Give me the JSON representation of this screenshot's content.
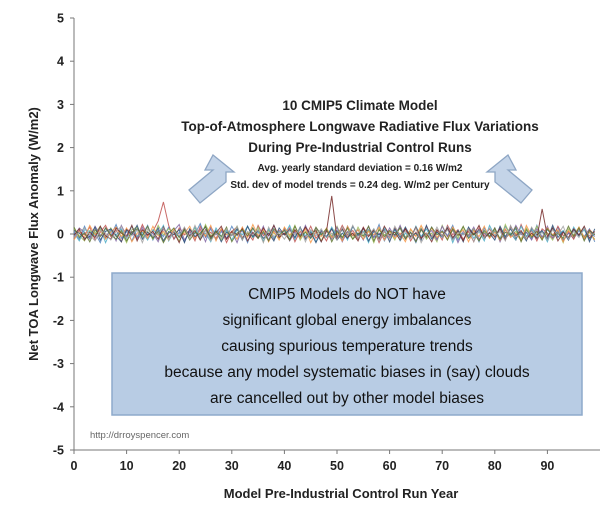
{
  "chart_data": {
    "type": "line",
    "title_lines": [
      "10 CMIP5 Climate Model",
      "Top-of-Atmosphere Longwave Radiative Flux Variations",
      "During Pre-Industrial Control Runs"
    ],
    "subtitle_lines": [
      "Avg. yearly standard deviation = 0.16 W/m2",
      "Std. dev of model trends = 0.24 deg. W/m2 per Century"
    ],
    "xlabel": "Model Pre-Industrial Control Run Year",
    "ylabel": "Net TOA Longwave Flux Anomaly (W/m2)",
    "xlim": [
      0,
      100
    ],
    "ylim": [
      -5,
      5
    ],
    "x_ticks": [
      0,
      10,
      20,
      30,
      40,
      50,
      60,
      70,
      80,
      90
    ],
    "y_ticks": [
      -5,
      -4,
      -3,
      -2,
      -1,
      0,
      1,
      2,
      3,
      4,
      5
    ],
    "grid": false,
    "legend": "none",
    "series_count": 10,
    "series_colors": [
      "#4f81bd",
      "#c0504d",
      "#9bbb59",
      "#8064a2",
      "#4bacc6",
      "#f79646",
      "#2c4d75",
      "#772c2a",
      "#5f7530",
      "#a3a3a3"
    ],
    "series_noise": [
      [
        0.05,
        -0.12,
        0.18,
        -0.08,
        0.02,
        -0.2,
        0.14,
        -0.04,
        0.22,
        -0.1,
        0.06,
        -0.16,
        0.12,
        -0.02,
        0.2,
        -0.14,
        0.08,
        -0.06,
        0.16,
        -0.12,
        0.04,
        -0.18,
        0.1,
        0.0,
        0.24,
        -0.08,
        0.12,
        -0.14,
        0.06,
        -0.1,
        0.18,
        -0.04,
        0.08,
        -0.2,
        0.14,
        -0.06,
        0.02,
        -0.16,
        0.2,
        -0.08,
        0.1,
        -0.12,
        0.06,
        -0.02,
        0.16,
        -0.1,
        0.04,
        -0.18,
        0.12,
        -0.06,
        0.08,
        -0.14,
        0.18,
        -0.04,
        0.02,
        -0.12,
        0.1,
        -0.08,
        0.22,
        -0.16,
        0.06,
        -0.02,
        0.14,
        -0.1,
        0.04,
        -0.2,
        0.12,
        -0.06,
        0.16,
        -0.12,
        0.08,
        -0.04,
        0.2,
        -0.14,
        0.02,
        -0.08,
        0.1,
        -0.18,
        0.14,
        -0.06,
        0.06,
        -0.1,
        0.18,
        -0.02,
        0.12,
        -0.16,
        0.04,
        -0.12,
        0.2,
        -0.08,
        0.1,
        -0.04,
        0.16,
        -0.14,
        0.02,
        -0.1,
        0.08,
        -0.06,
        0.12,
        -0.18
      ],
      [
        -0.1,
        0.08,
        -0.02,
        0.16,
        -0.14,
        0.04,
        0.2,
        -0.06,
        0.1,
        -0.18,
        0.12,
        0.02,
        -0.08,
        0.22,
        -0.04,
        0.06,
        0.3,
        0.74,
        0.2,
        -0.12,
        0.14,
        -0.02,
        0.08,
        -0.16,
        0.18,
        -0.06,
        0.04,
        -0.1,
        0.12,
        -0.2,
        0.06,
        0.16,
        -0.08,
        0.02,
        -0.14,
        0.2,
        -0.04,
        0.1,
        -0.12,
        0.08,
        -0.02,
        0.14,
        -0.18,
        0.06,
        -0.08,
        0.18,
        -0.1,
        0.04,
        -0.16,
        0.12,
        -0.06,
        0.2,
        -0.02,
        0.08,
        -0.12,
        0.16,
        -0.04,
        0.1,
        -0.2,
        0.06,
        -0.08,
        0.14,
        -0.02,
        0.12,
        -0.16,
        0.04,
        -0.1,
        0.18,
        -0.06,
        0.08,
        -0.14,
        0.2,
        -0.02,
        0.1,
        -0.12,
        0.06,
        -0.18,
        0.14,
        -0.04,
        0.12,
        -0.08,
        0.16,
        -0.1,
        0.02,
        -0.14,
        0.22,
        -0.06,
        0.08,
        -0.16,
        0.12,
        0.02,
        -0.1,
        0.18,
        -0.04,
        0.06,
        -0.12,
        0.14,
        -0.08,
        0.1,
        -0.02
      ],
      [
        0.12,
        -0.04,
        -0.16,
        0.08,
        0.02,
        0.18,
        -0.1,
        0.14,
        -0.06,
        0.04,
        -0.2,
        0.1,
        0.16,
        -0.08,
        0.06,
        -0.12,
        0.2,
        -0.02,
        0.12,
        0.04,
        -0.16,
        0.08,
        -0.06,
        0.14,
        -0.1,
        0.22,
        -0.04,
        0.06,
        -0.14,
        0.1,
        -0.02,
        0.18,
        -0.12,
        0.04,
        -0.08,
        0.16,
        -0.18,
        0.08,
        0.02,
        -0.1,
        0.14,
        -0.06,
        0.2,
        -0.14,
        0.06,
        -0.02,
        0.12,
        -0.16,
        0.1,
        -0.04,
        0.18,
        -0.08,
        0.04,
        -0.12,
        0.16,
        -0.06,
        0.08,
        -0.2,
        0.12,
        -0.02,
        0.06,
        -0.14,
        0.18,
        -0.08,
        0.1,
        -0.04,
        0.14,
        -0.12,
        0.02,
        -0.18,
        0.2,
        -0.06,
        0.08,
        -0.1,
        0.16,
        -0.02,
        0.12,
        -0.14,
        0.04,
        -0.08,
        0.1,
        -0.16,
        0.22,
        -0.04,
        0.06,
        -0.12,
        0.14,
        -0.06,
        0.18,
        -0.1,
        0.02,
        -0.14,
        0.08,
        -0.2,
        0.12,
        -0.02,
        0.16,
        -0.08,
        0.04,
        -0.12
      ],
      [
        -0.06,
        0.14,
        0.04,
        -0.12,
        0.18,
        -0.02,
        -0.08,
        0.1,
        -0.16,
        0.2,
        -0.04,
        0.06,
        -0.12,
        0.16,
        -0.1,
        0.02,
        -0.18,
        0.12,
        -0.06,
        0.08,
        0.22,
        -0.14,
        0.04,
        -0.08,
        0.12,
        -0.18,
        0.16,
        -0.02,
        0.1,
        -0.12,
        0.06,
        -0.2,
        0.14,
        -0.06,
        0.02,
        -0.1,
        0.18,
        -0.14,
        0.08,
        -0.04,
        0.12,
        -0.16,
        0.04,
        -0.1,
        0.2,
        -0.06,
        0.14,
        -0.02,
        0.08,
        -0.12,
        0.16,
        -0.18,
        0.06,
        -0.04,
        0.1,
        -0.14,
        0.18,
        -0.08,
        0.02,
        -0.12,
        0.14,
        -0.06,
        0.2,
        -0.1,
        0.04,
        -0.16,
        0.12,
        -0.02,
        0.08,
        -0.14,
        0.18,
        -0.06,
        0.1,
        -0.2,
        0.06,
        -0.04,
        0.16,
        -0.12,
        0.02,
        -0.08,
        0.14,
        -0.18,
        0.1,
        -0.06,
        0.2,
        -0.02,
        0.04,
        -0.14,
        0.12,
        -0.08,
        0.18,
        -0.1,
        0.06,
        -0.16,
        0.02,
        -0.04,
        0.14,
        -0.12,
        0.08,
        -0.06
      ],
      [
        0.02,
        -0.16,
        0.1,
        0.06,
        -0.04,
        0.14,
        -0.2,
        0.08,
        -0.02,
        0.12,
        -0.1,
        0.18,
        -0.06,
        0.04,
        -0.14,
        0.1,
        -0.02,
        0.2,
        -0.16,
        0.06,
        -0.08,
        0.12,
        -0.04,
        0.16,
        -0.12,
        0.02,
        -0.18,
        0.14,
        -0.06,
        0.08,
        -0.14,
        0.1,
        -0.02,
        0.18,
        -0.08,
        0.04,
        -0.16,
        0.12,
        -0.1,
        0.06,
        -0.02,
        0.2,
        -0.12,
        0.14,
        -0.04,
        0.08,
        -0.18,
        0.02,
        -0.08,
        0.16,
        -0.06,
        0.1,
        -0.14,
        0.18,
        -0.02,
        0.06,
        -0.2,
        0.12,
        -0.08,
        0.14,
        -0.04,
        0.1,
        -0.16,
        0.02,
        -0.1,
        0.18,
        -0.06,
        0.12,
        -0.12,
        0.04,
        -0.08,
        0.16,
        -0.2,
        0.08,
        -0.02,
        0.14,
        -0.1,
        0.06,
        -0.16,
        0.2,
        -0.04,
        0.12,
        -0.08,
        0.02,
        -0.14,
        0.18,
        -0.06,
        0.1,
        -0.1,
        0.06,
        -0.18,
        0.14,
        -0.02,
        0.08,
        -0.12,
        0.16,
        -0.04,
        0.1,
        -0.14,
        0.02
      ],
      [
        -0.14,
        0.06,
        -0.08,
        0.2,
        -0.02,
        0.1,
        -0.12,
        0.04,
        0.16,
        -0.06,
        0.14,
        -0.18,
        0.02,
        0.08,
        -0.1,
        0.18,
        -0.04,
        0.06,
        -0.14,
        0.12,
        -0.06,
        0.02,
        0.18,
        -0.1,
        0.08,
        -0.04,
        0.2,
        -0.16,
        0.12,
        -0.02,
        0.06,
        -0.12,
        0.16,
        -0.08,
        0.22,
        -0.04,
        0.1,
        -0.18,
        0.06,
        -0.14,
        0.16,
        -0.02,
        0.08,
        -0.1,
        0.12,
        -0.2,
        0.04,
        -0.06,
        0.14,
        -0.08,
        0.02,
        -0.16,
        0.18,
        -0.04,
        0.1,
        -0.12,
        0.06,
        -0.02,
        0.16,
        -0.14,
        0.08,
        -0.1,
        0.02,
        -0.18,
        0.12,
        -0.06,
        0.2,
        -0.04,
        0.14,
        -0.08,
        0.06,
        -0.12,
        0.16,
        -0.02,
        0.1,
        -0.18,
        0.08,
        -0.06,
        0.18,
        -0.1,
        0.04,
        -0.14,
        0.12,
        -0.08,
        0.02,
        -0.16,
        0.2,
        -0.04,
        0.06,
        -0.12,
        0.14,
        -0.02,
        0.1,
        -0.18,
        0.08,
        -0.06,
        0.16,
        -0.1,
        0.04,
        -0.14
      ],
      [
        0.08,
        0.02,
        -0.1,
        -0.06,
        0.16,
        -0.14,
        0.06,
        0.12,
        -0.04,
        -0.18,
        0.1,
        -0.02,
        0.2,
        -0.12,
        0.04,
        -0.08,
        0.14,
        -0.16,
        0.06,
        -0.02,
        0.1,
        -0.2,
        0.12,
        -0.06,
        0.02,
        0.16,
        -0.1,
        0.08,
        -0.18,
        0.04,
        -0.04,
        0.12,
        -0.14,
        0.18,
        -0.06,
        0.08,
        -0.1,
        0.02,
        -0.16,
        0.14,
        -0.02,
        0.1,
        -0.08,
        0.16,
        -0.12,
        0.04,
        -0.2,
        0.08,
        -0.06,
        0.12,
        -0.14,
        0.02,
        -0.1,
        0.18,
        -0.04,
        0.14,
        -0.16,
        0.06,
        -0.02,
        0.1,
        -0.18,
        0.12,
        -0.08,
        0.16,
        -0.06,
        0.02,
        -0.14,
        0.2,
        -0.1,
        0.04,
        -0.06,
        0.12,
        -0.12,
        0.08,
        -0.18,
        0.16,
        -0.02,
        0.1,
        -0.08,
        0.02,
        -0.14,
        0.18,
        -0.06,
        0.12,
        -0.1,
        0.04,
        -0.16,
        0.14,
        -0.02,
        0.08,
        -0.12,
        0.2,
        -0.08,
        0.06,
        -0.14,
        0.1,
        -0.04,
        0.16,
        -0.18,
        0.12
      ],
      [
        -0.02,
        0.12,
        -0.14,
        0.04,
        -0.08,
        0.18,
        -0.04,
        -0.12,
        0.14,
        0.02,
        -0.06,
        0.2,
        -0.16,
        0.1,
        -0.02,
        0.06,
        -0.12,
        0.16,
        -0.08,
        0.04,
        -0.2,
        0.14,
        -0.04,
        0.08,
        -0.14,
        0.1,
        -0.06,
        0.02,
        0.18,
        -0.12,
        0.06,
        -0.02,
        0.12,
        -0.16,
        0.04,
        -0.1,
        0.14,
        -0.04,
        0.2,
        -0.08,
        0.02,
        -0.14,
        0.1,
        -0.06,
        0.16,
        -0.02,
        0.08,
        -0.18,
        0.06,
        0.88,
        -0.1,
        0.12,
        -0.08,
        0.02,
        -0.16,
        0.14,
        -0.06,
        0.1,
        -0.12,
        0.18,
        -0.02,
        0.04,
        -0.14,
        0.12,
        -0.08,
        0.16,
        -0.1,
        0.02,
        -0.18,
        0.1,
        -0.04,
        0.14,
        -0.08,
        0.06,
        -0.16,
        0.12,
        -0.02,
        0.2,
        -0.1,
        0.04,
        -0.06,
        0.12,
        -0.14,
        0.18,
        -0.04,
        0.08,
        -0.12,
        0.02,
        -0.1,
        0.58,
        -0.06,
        0.14,
        -0.16,
        0.04,
        -0.08,
        0.12,
        -0.02,
        0.18,
        -0.1,
        0.06
      ],
      [
        0.16,
        -0.08,
        0.02,
        -0.18,
        0.1,
        -0.06,
        0.14,
        -0.02,
        -0.12,
        0.08,
        -0.16,
        0.04,
        0.12,
        -0.04,
        0.18,
        -0.1,
        0.06,
        -0.2,
        0.02,
        0.14,
        -0.08,
        0.1,
        -0.14,
        0.04,
        -0.02,
        0.18,
        -0.12,
        0.06,
        -0.06,
        0.16,
        -0.18,
        0.02,
        0.1,
        -0.04,
        0.14,
        -0.1,
        0.06,
        -0.16,
        0.12,
        -0.02,
        0.08,
        -0.14,
        0.18,
        -0.06,
        0.04,
        -0.1,
        0.16,
        -0.02,
        0.12,
        -0.18,
        0.06,
        -0.08,
        0.14,
        -0.12,
        0.02,
        -0.04,
        0.18,
        -0.16,
        0.1,
        -0.06,
        0.08,
        -0.02,
        0.14,
        -0.12,
        0.04,
        -0.18,
        0.1,
        -0.08,
        0.16,
        -0.02,
        0.06,
        -0.14,
        0.12,
        -0.04,
        0.18,
        -0.1,
        0.02,
        -0.16,
        0.08,
        -0.06,
        0.14,
        -0.12,
        0.04,
        -0.02,
        0.16,
        -0.18,
        0.1,
        -0.08,
        0.06,
        -0.14,
        0.12,
        -0.04,
        0.02,
        -0.1,
        0.18,
        -0.06,
        0.14,
        -0.16,
        0.08,
        -0.02
      ],
      [
        -0.08,
        0.04,
        0.14,
        -0.02,
        -0.16,
        0.08,
        0.02,
        -0.14,
        0.06,
        0.18,
        -0.08,
        -0.04,
        0.1,
        -0.2,
        0.12,
        -0.06,
        0.02,
        0.14,
        -0.12,
        0.06,
        -0.04,
        0.16,
        -0.1,
        0.2,
        -0.06,
        0.08,
        -0.16,
        0.02,
        -0.1,
        0.12,
        -0.04,
        0.18,
        -0.14,
        0.06,
        -0.02,
        0.1,
        -0.2,
        0.16,
        -0.06,
        0.04,
        -0.12,
        0.08,
        -0.02,
        0.14,
        -0.18,
        0.1,
        -0.04,
        0.12,
        -0.08,
        0.02,
        -0.14,
        0.16,
        -0.06,
        0.2,
        -0.1,
        0.04,
        -0.02,
        0.12,
        -0.16,
        0.08,
        -0.12,
        0.18,
        -0.04,
        0.06,
        -0.1,
        0.14,
        -0.2,
        0.02,
        -0.08,
        0.16,
        -0.06,
        0.1,
        -0.14,
        0.04,
        -0.02,
        0.12,
        -0.18,
        0.08,
        -0.1,
        0.14,
        -0.04,
        0.06,
        -0.16,
        0.2,
        -0.08,
        0.02,
        -0.12,
        0.16,
        -0.06,
        0.04,
        -0.14,
        0.1,
        -0.02,
        0.18,
        -0.12,
        0.06,
        -0.08,
        0.14,
        -0.04,
        0.02
      ]
    ],
    "callout_lines": [
      "CMIP5 Models do NOT have",
      "significant global energy imbalances",
      "causing spurious temperature trends",
      "because any model systematic biases in (say) clouds",
      "are cancelled out by other model biases"
    ],
    "callout_fill": "#b8cce4",
    "callout_border": "#8eaacb",
    "arrow_fill": "#c4d4e8",
    "arrow_stroke": "#8ea6c4",
    "watermark": "http://drroyspencer.com"
  }
}
